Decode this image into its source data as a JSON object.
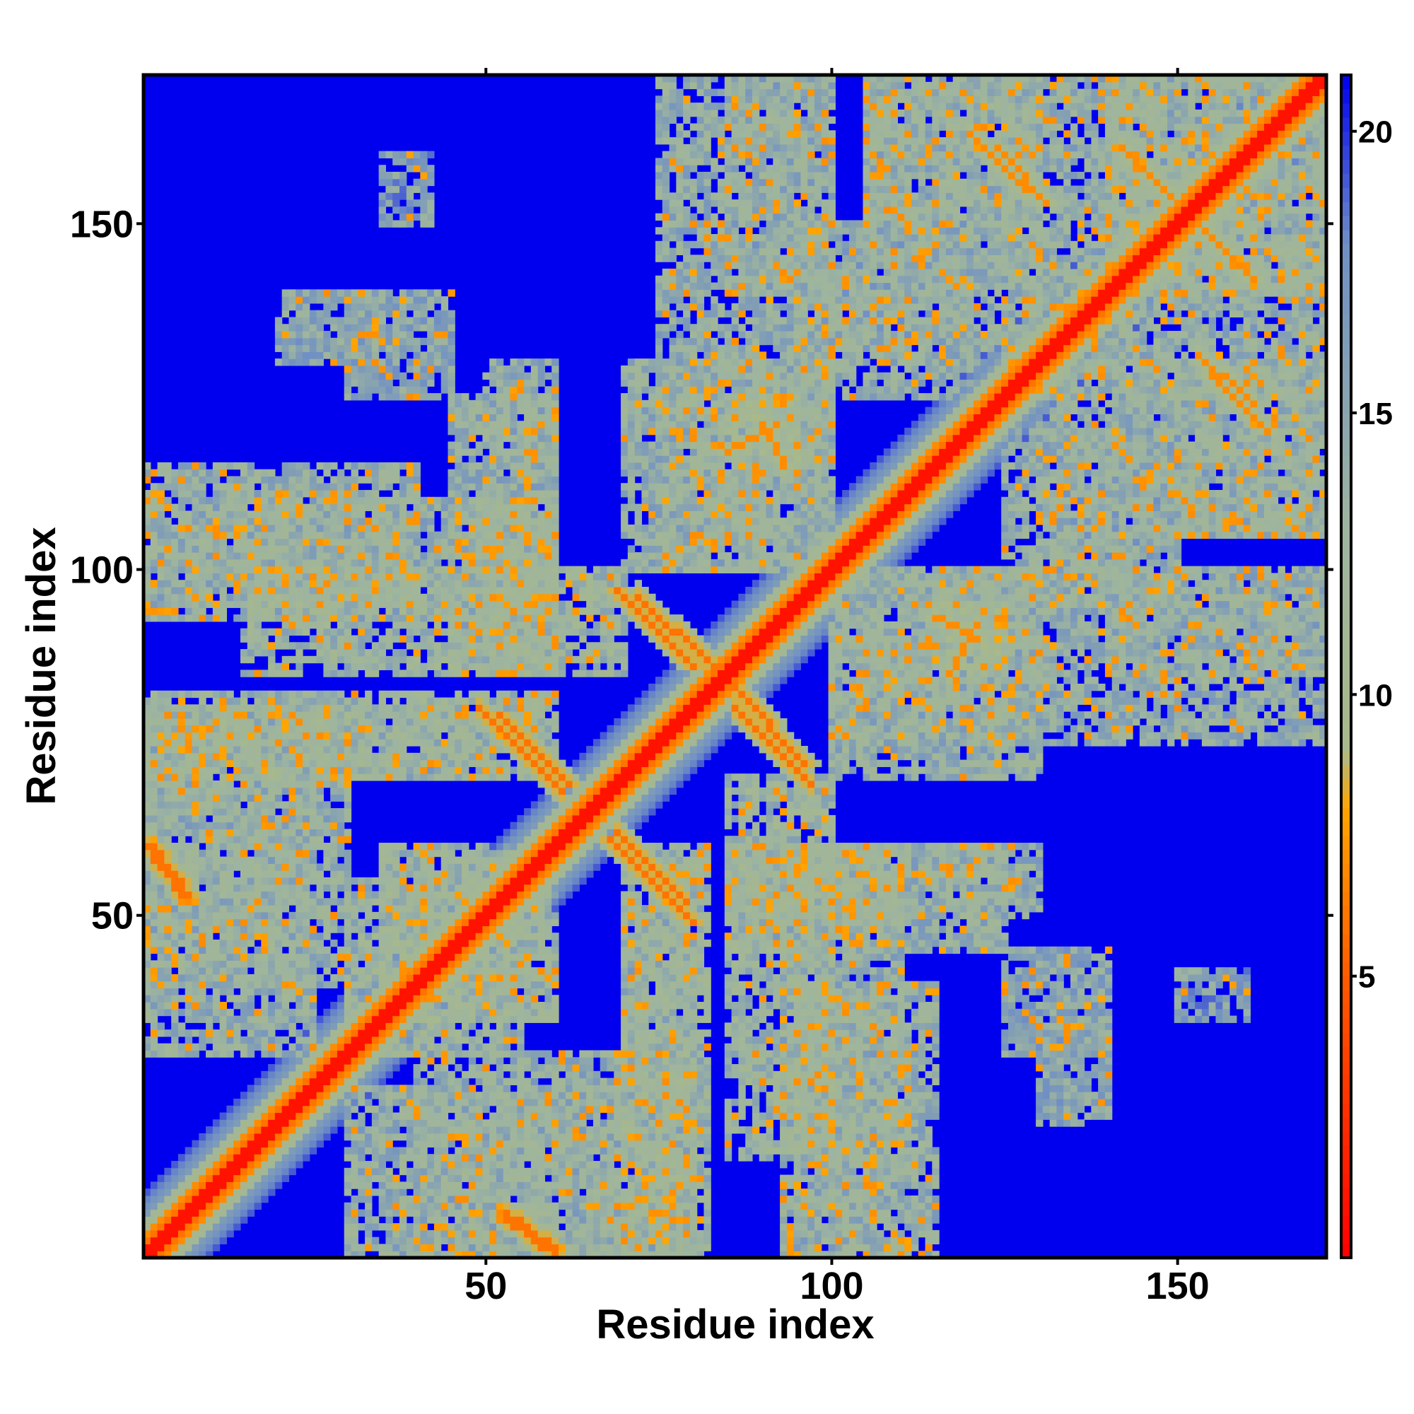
{
  "chart_data": {
    "type": "heatmap",
    "description_free": true,
    "xlabel": "Residue index",
    "ylabel": "Residue index",
    "n_residues": 171,
    "xlim": [
      1,
      171
    ],
    "ylim": [
      1,
      171
    ],
    "x_ticks": [
      50,
      100,
      150
    ],
    "y_ticks": [
      50,
      100,
      150
    ],
    "colorbar": {
      "ticks": [
        5,
        10,
        15,
        20
      ],
      "range": [
        0,
        21
      ],
      "colors": [
        {
          "value": 0,
          "color": "#ff0000"
        },
        {
          "value": 5,
          "color": "#ff5a00"
        },
        {
          "value": 8,
          "color": "#ffa500"
        },
        {
          "value": 9,
          "color": "#a9b98a"
        },
        {
          "value": 13,
          "color": "#9db4a0"
        },
        {
          "value": 18,
          "color": "#6f8fc4"
        },
        {
          "value": 21,
          "color": "#0000ee"
        }
      ],
      "background_color": "#0000ee"
    },
    "diagonal_band": {
      "start": 1,
      "end": 171,
      "core_value": 1,
      "half_width_contact": 4
    },
    "antiparallel_contacts": [
      {
        "i_start": 69,
        "i_end": 80,
        "j_start": 97,
        "j_end": 86,
        "value": 6
      },
      {
        "i_start": 52,
        "i_end": 62,
        "j_start": 79,
        "j_end": 69,
        "value": 6
      },
      {
        "i_start": 68,
        "i_end": 80,
        "j_start": 61,
        "j_end": 49,
        "value": 6
      },
      {
        "i_start": 86,
        "i_end": 96,
        "j_start": 83,
        "j_end": 72,
        "value": 6
      },
      {
        "i_start": 124,
        "i_end": 131,
        "j_start": 161,
        "j_end": 153,
        "value": 7
      },
      {
        "i_start": 153,
        "i_end": 161,
        "j_start": 150,
        "j_end": 142,
        "value": 7
      },
      {
        "i_start": 155,
        "i_end": 163,
        "j_start": 128,
        "j_end": 120,
        "value": 7
      },
      {
        "i_start": 53,
        "i_end": 60,
        "j_start": 6,
        "j_end": 1,
        "value": 6
      },
      {
        "i_start": 2,
        "i_end": 7,
        "j_start": 60,
        "j_end": 53,
        "value": 6
      },
      {
        "i_start": 85,
        "i_end": 92,
        "j_start": 117,
        "j_end": 121,
        "value": 7
      },
      {
        "i_start": 115,
        "i_end": 121,
        "j_start": 93,
        "j_end": 90,
        "value": 7
      }
    ],
    "contact_regions": [
      {
        "x0": 1,
        "x1": 30,
        "y0": 40,
        "y1": 80,
        "level": 14
      },
      {
        "x0": 1,
        "x1": 40,
        "y0": 93,
        "y1": 115,
        "level": 14
      },
      {
        "x0": 15,
        "x1": 70,
        "y0": 85,
        "y1": 100,
        "level": 13
      },
      {
        "x0": 1,
        "x1": 60,
        "y0": 70,
        "y1": 82,
        "level": 13
      },
      {
        "x0": 20,
        "x1": 35,
        "y0": 130,
        "y1": 140,
        "level": 15
      },
      {
        "x0": 45,
        "x1": 60,
        "y0": 85,
        "y1": 125,
        "level": 14
      },
      {
        "x0": 30,
        "x1": 60,
        "y0": 35,
        "y1": 55,
        "level": 13
      },
      {
        "x0": 30,
        "x1": 80,
        "y0": 1,
        "y1": 25,
        "level": 14
      },
      {
        "x0": 70,
        "x1": 80,
        "y0": 25,
        "y1": 50,
        "level": 14
      },
      {
        "x0": 75,
        "x1": 100,
        "y0": 100,
        "y1": 171,
        "level": 14
      },
      {
        "x0": 85,
        "x1": 95,
        "y0": 115,
        "y1": 125,
        "level": 12
      },
      {
        "x0": 95,
        "x1": 110,
        "y0": 1,
        "y1": 60,
        "level": 14
      },
      {
        "x0": 85,
        "x1": 130,
        "y0": 50,
        "y1": 60,
        "level": 14
      },
      {
        "x0": 100,
        "x1": 130,
        "y0": 70,
        "y1": 100,
        "level": 14
      },
      {
        "x0": 105,
        "x1": 125,
        "y0": 150,
        "y1": 171,
        "level": 14
      },
      {
        "x0": 95,
        "x1": 120,
        "y0": 130,
        "y1": 150,
        "level": 15
      },
      {
        "x0": 125,
        "x1": 145,
        "y0": 100,
        "y1": 171,
        "level": 14
      },
      {
        "x0": 145,
        "x1": 171,
        "y0": 105,
        "y1": 130,
        "level": 14
      },
      {
        "x0": 140,
        "x1": 171,
        "y0": 85,
        "y1": 100,
        "level": 15
      },
      {
        "x0": 125,
        "x1": 140,
        "y0": 30,
        "y1": 45,
        "level": 15
      },
      {
        "x0": 150,
        "x1": 160,
        "y0": 35,
        "y1": 42,
        "level": 16
      },
      {
        "x0": 140,
        "x1": 171,
        "y0": 140,
        "y1": 171,
        "level": 14
      }
    ]
  }
}
